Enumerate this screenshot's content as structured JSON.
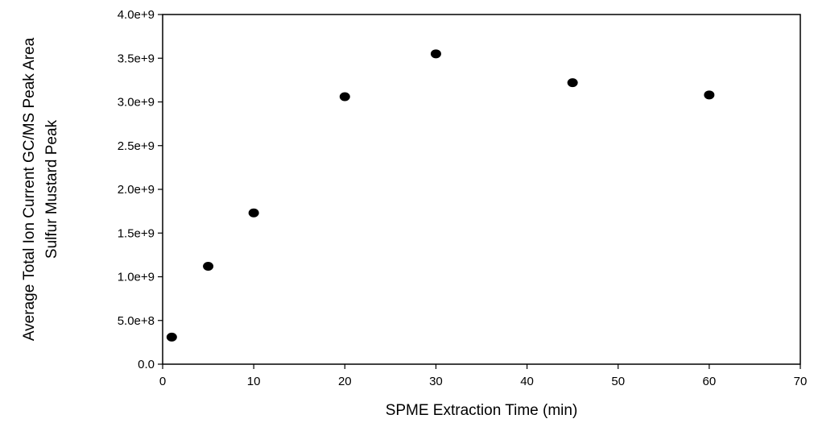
{
  "chart_data": {
    "type": "scatter",
    "title": "",
    "xlabel": "SPME Extraction Time (min)",
    "ylabel_lines": [
      "Average Total Ion Current GC/MS Peak Area",
      "Sulfur Mustard Peak"
    ],
    "xlim": [
      0,
      70
    ],
    "ylim": [
      0,
      4000000000
    ],
    "x_ticks": [
      0,
      10,
      20,
      30,
      40,
      50,
      60,
      70
    ],
    "y_ticks": [
      0,
      500000000,
      1000000000,
      1500000000,
      2000000000,
      2500000000,
      3000000000,
      3500000000,
      4000000000
    ],
    "x_tick_labels": [
      "0",
      "10",
      "20",
      "30",
      "40",
      "50",
      "60",
      "70"
    ],
    "y_tick_labels": [
      "0.0",
      "5.0e+8",
      "1.0e+9",
      "1.5e+9",
      "2.0e+9",
      "2.5e+9",
      "3.0e+9",
      "3.5e+9",
      "4.0e+9"
    ],
    "grid": false,
    "series": [
      {
        "x": [
          1,
          5,
          10,
          20,
          30,
          45,
          60
        ],
        "y": [
          310000000,
          1120000000,
          1730000000,
          3060000000,
          3550000000,
          3220000000,
          3080000000
        ],
        "color": "#000000"
      }
    ]
  }
}
